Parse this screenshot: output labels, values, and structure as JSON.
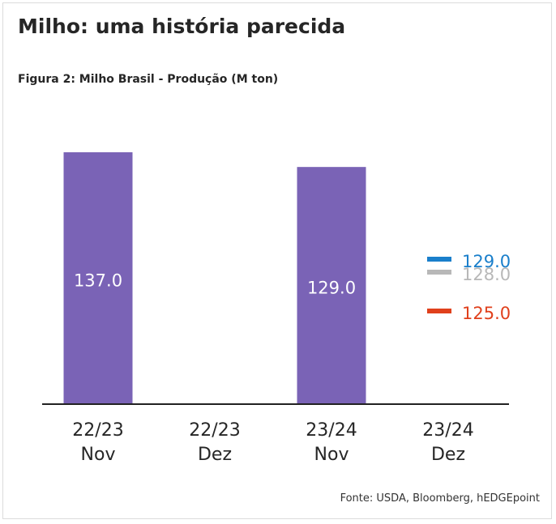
{
  "title": "Milho: uma história parecida",
  "subtitle": "Figura 2: Milho Brasil - Produção (M ton)",
  "source": "Fonte: USDA, Bloomberg, hEDGEpoint",
  "colors": {
    "bar": "#7a63b6",
    "axis": "#222222",
    "est_blue": "#1a7fcb",
    "est_gray": "#b8b8b8",
    "est_red": "#e0401c"
  },
  "chart_data": {
    "type": "bar",
    "categories": [
      [
        "22/23",
        "Nov"
      ],
      [
        "22/23",
        "Dez"
      ],
      [
        "23/24",
        "Nov"
      ],
      [
        "23/24",
        "Dez"
      ]
    ],
    "values": [
      137.0,
      null,
      129.0,
      null
    ],
    "value_labels": [
      "137.0",
      "",
      "129.0",
      ""
    ],
    "estimates": [
      {
        "value": 129.0,
        "label": "129.0",
        "color": "#1a7fcb"
      },
      {
        "value": 128.0,
        "label": "128.0",
        "color": "#b8b8b8"
      },
      {
        "value": 125.0,
        "label": "125.0",
        "color": "#e0401c"
      }
    ],
    "ylim": [
      0,
      145
    ],
    "grid": false,
    "legend": "none"
  }
}
